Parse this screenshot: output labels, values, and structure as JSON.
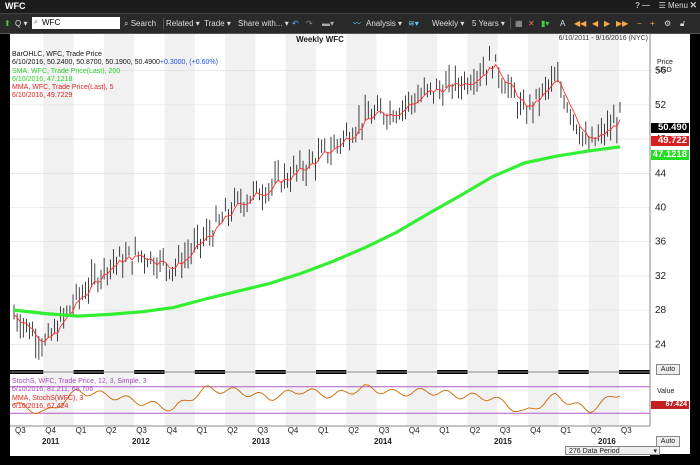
{
  "window": {
    "title": "WFC",
    "menu_label": "Menu",
    "close_glyph": "✕"
  },
  "toolbar": {
    "symbol_value": "WFC",
    "search_label": "Search",
    "related_label": "Related",
    "trade_label": "Trade",
    "share_label": "Share with...",
    "analysis_label": "Analysis",
    "period_label": "Weekly",
    "range_label": "5 Years"
  },
  "chart": {
    "title": "Weekly WFC",
    "date_range": "6/10/2011 - 9/16/2016 (NYC)",
    "price_axis_label": "Price",
    "currency_label": "USD",
    "value_axis_label": "Value",
    "auto_label": "Auto",
    "data_period_label": "276 Data Period",
    "colors": {
      "bars": "#111111",
      "sma": "#33ee33",
      "mma": "#ff3333",
      "stoch": "#cc6600",
      "stoch_band": "#b45ac8"
    }
  },
  "legend": {
    "bar_line1": "BarOHLC, WFC, Trade Price",
    "bar_line2": "6/10/2016, 50.2400, 50.8700, 50.1900, 50.4900",
    "bar_change": "+0.3000, (+0.60%)",
    "sma_line1": "SMA, WFC, Trade Price(Last), 200",
    "sma_line2": "6/10/2016, 47.1218",
    "mma_line1": "MMA, WFC, Trade Price(Last), 5",
    "mma_line2": "6/10/2016, 49.7229"
  },
  "stoch_legend": {
    "line1": "StochS, WFC, Trade Price, 12, 3, Simple, 3",
    "line2": "6/10/2016, 81.211, 68.706",
    "line3": "MMA, StochS(WFC), 3",
    "line4": "6/10/2016, 67.424"
  },
  "tags": {
    "last": "50.490",
    "mma": "49.722",
    "sma": "47.1218",
    "stoch": "67.424"
  },
  "chart_data": {
    "type": "line",
    "title": "Weekly WFC",
    "ylabel": "Price USD",
    "ylim": [
      21,
      59
    ],
    "y_ticks": [
      24,
      28,
      32,
      36,
      40,
      44,
      48,
      52,
      56
    ],
    "x_ticks": [
      "Q3",
      "Q4",
      "Q1",
      "Q2",
      "Q3",
      "Q4",
      "Q1",
      "Q2",
      "Q3",
      "Q4",
      "Q1",
      "Q2",
      "Q3",
      "Q4",
      "Q1",
      "Q2",
      "Q3",
      "Q4",
      "Q1",
      "Q2",
      "Q3"
    ],
    "x_years": [
      "2011",
      "2012",
      "2013",
      "2014",
      "2015",
      "2016"
    ],
    "price_series": {
      "name": "BarOHLC",
      "quarters": [
        "2011Q3",
        "2011Q4",
        "2012Q1",
        "2012Q2",
        "2012Q3",
        "2012Q4",
        "2013Q1",
        "2013Q2",
        "2013Q3",
        "2013Q4",
        "2014Q1",
        "2014Q2",
        "2014Q3",
        "2014Q4",
        "2015Q1",
        "2015Q2",
        "2015Q3",
        "2015Q4",
        "2016Q1",
        "2016Q2"
      ],
      "close": [
        27.5,
        24.0,
        29.5,
        33.5,
        34.5,
        33.0,
        36.5,
        40.5,
        42.5,
        44.5,
        47.0,
        50.5,
        51.5,
        53.5,
        54.5,
        57.0,
        51.0,
        55.0,
        47.0,
        50.5
      ]
    },
    "sma_series": {
      "name": "SMA 200",
      "values": [
        28.0,
        27.6,
        27.3,
        27.5,
        27.8,
        28.3,
        29.3,
        30.2,
        31.1,
        32.3,
        33.7,
        35.3,
        37.1,
        39.3,
        41.4,
        43.6,
        45.2,
        46.0,
        46.6,
        47.1
      ]
    },
    "stoch_series": {
      "name": "StochS",
      "range": [
        0,
        100
      ],
      "values": [
        40,
        20,
        70,
        60,
        45,
        30,
        75,
        70,
        55,
        72,
        60,
        78,
        65,
        70,
        60,
        55,
        20,
        60,
        25,
        67
      ]
    }
  }
}
